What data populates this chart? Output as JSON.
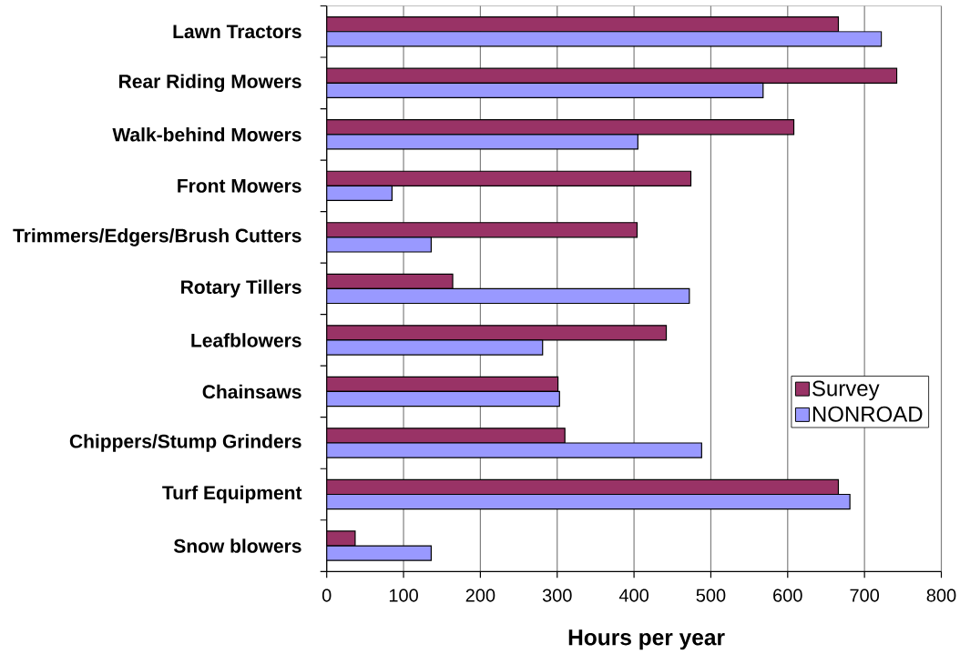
{
  "chart_data": {
    "type": "bar",
    "orientation": "horizontal",
    "xlabel": "Hours per year",
    "categories": [
      "Lawn Tractors",
      "Rear Riding Mowers",
      "Walk-behind Mowers",
      "Front Mowers",
      "Trimmers/Edgers/Brush Cutters",
      "Rotary Tillers",
      "Leafblowers",
      "Chainsaws",
      "Chippers/Stump Grinders",
      "Turf Equipment",
      "Snow blowers"
    ],
    "series": [
      {
        "name": "Survey",
        "color": "#993366",
        "values": [
          666,
          742,
          608,
          474,
          404,
          164,
          442,
          301,
          310,
          666,
          37
        ]
      },
      {
        "name": "NONROAD",
        "color": "#9999ff",
        "values": [
          722,
          568,
          405,
          85,
          136,
          472,
          281,
          303,
          488,
          681,
          136
        ]
      }
    ],
    "xlim": [
      0,
      800
    ],
    "xticks": [
      0,
      100,
      200,
      300,
      400,
      500,
      600,
      700,
      800
    ],
    "grid": "x",
    "legend": "right"
  }
}
